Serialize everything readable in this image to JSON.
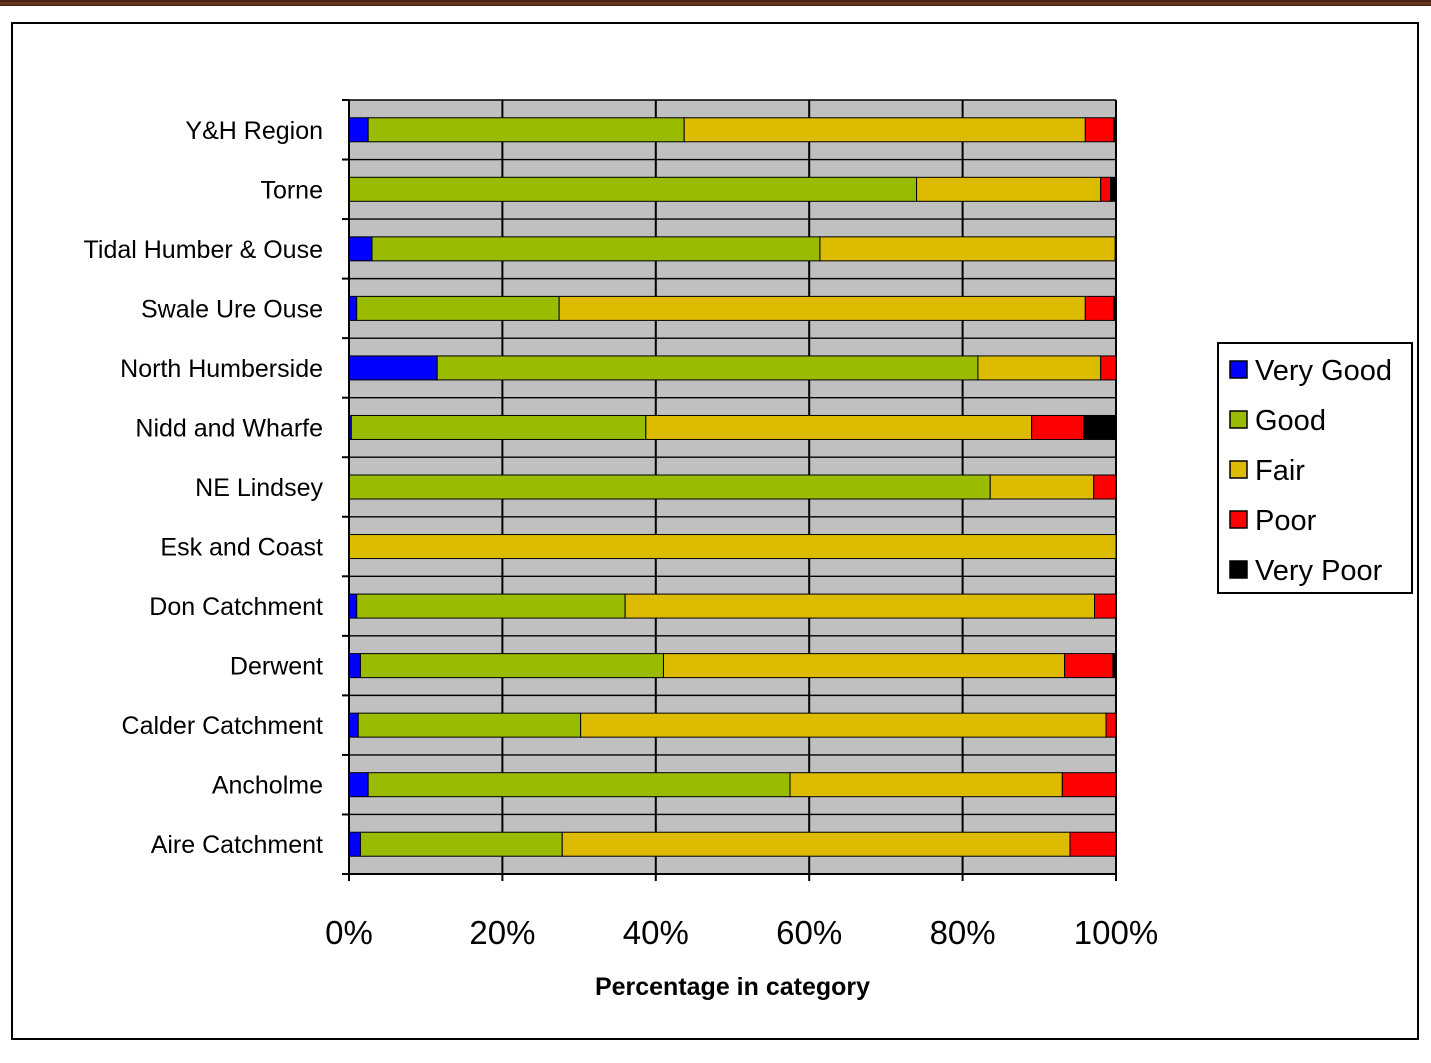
{
  "chart_data": {
    "type": "bar",
    "orientation": "horizontal",
    "stacked": "percent",
    "title": "",
    "xlabel": "Percentage in category",
    "ylabel": "",
    "xlim": [
      0,
      100
    ],
    "x_ticks": [
      "0%",
      "20%",
      "40%",
      "60%",
      "80%",
      "100%"
    ],
    "grid": true,
    "legend_position": "right",
    "categories": [
      "Y&H Region",
      "Torne",
      "Tidal Humber & Ouse",
      "Swale Ure Ouse",
      "North Humberside",
      "Nidd and Wharfe",
      "NE Lindsey",
      "Esk and Coast",
      "Don Catchment",
      "Derwent",
      "Calder Catchment",
      "Ancholme",
      "Aire Catchment"
    ],
    "series": [
      {
        "name": "Very Good",
        "color": "#0000ff",
        "values": [
          2.5,
          0,
          3,
          1,
          11.5,
          0.3,
          0,
          0,
          1,
          1.5,
          1.2,
          2.5,
          1.5
        ]
      },
      {
        "name": "Good",
        "color": "#99bb00",
        "values": [
          41.2,
          74,
          58.4,
          26.4,
          70.5,
          38.4,
          83.6,
          0,
          35,
          39.5,
          29,
          55,
          26.3
        ]
      },
      {
        "name": "Fair",
        "color": "#ddbb00",
        "values": [
          52.3,
          24,
          38.5,
          68.6,
          16,
          50.3,
          13.5,
          100,
          61.2,
          52.3,
          68.5,
          35.5,
          66.2
        ]
      },
      {
        "name": "Poor",
        "color": "#ff0000",
        "values": [
          3.7,
          1.3,
          0.1,
          3.7,
          2,
          6.8,
          2.9,
          0,
          2.8,
          6.3,
          1.3,
          7,
          6
        ]
      },
      {
        "name": "Very Poor",
        "color": "#000000",
        "values": [
          0.3,
          0.7,
          0,
          0.3,
          0,
          4.2,
          0,
          0,
          0,
          0.4,
          0,
          0,
          0
        ]
      }
    ]
  }
}
